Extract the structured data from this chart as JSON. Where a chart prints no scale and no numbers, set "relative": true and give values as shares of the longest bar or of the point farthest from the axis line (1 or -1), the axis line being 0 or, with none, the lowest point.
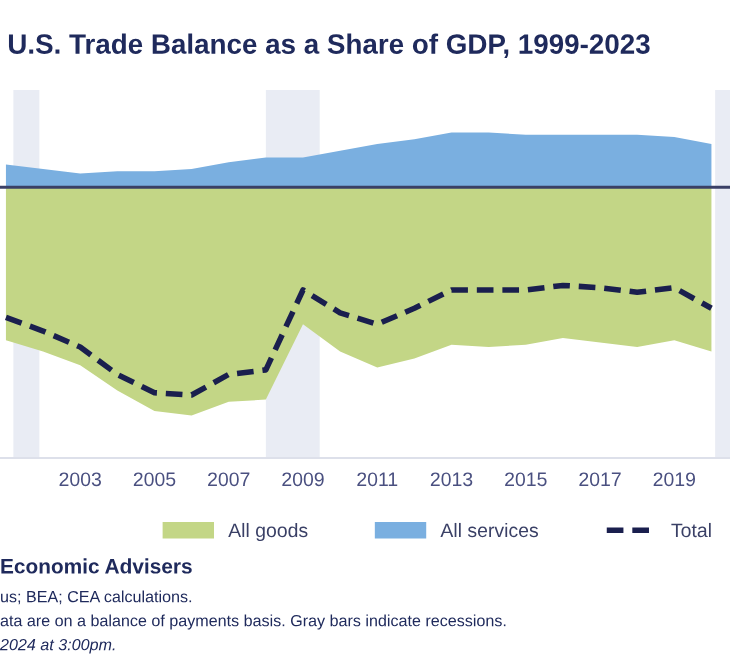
{
  "chart_data": {
    "type": "area",
    "title": "U.S. Trade Balance as a Share of GDP, 1999-2023",
    "relative": true,
    "x": [
      2001,
      2002,
      2003,
      2004,
      2005,
      2006,
      2007,
      2008,
      2009,
      2010,
      2011,
      2012,
      2013,
      2014,
      2015,
      2016,
      2017,
      2018,
      2019,
      2020
    ],
    "xlim": [
      2000.84,
      2020.5
    ],
    "xticks": [
      2003,
      2005,
      2007,
      2009,
      2011,
      2013,
      2015,
      2017,
      2019
    ],
    "series": [
      {
        "name": "All goods",
        "color": "#c3d686",
        "values": [
          -0.67,
          -0.72,
          -0.78,
          -0.89,
          -0.98,
          -1,
          -0.94,
          -0.93,
          -0.6,
          -0.72,
          -0.79,
          -0.75,
          -0.69,
          -0.7,
          -0.69,
          -0.66,
          -0.68,
          -0.7,
          -0.67,
          -0.72
        ]
      },
      {
        "name": "All services",
        "color": "#7aafe0",
        "values": [
          0.1,
          0.08,
          0.06,
          0.07,
          0.07,
          0.08,
          0.11,
          0.13,
          0.13,
          0.16,
          0.19,
          0.21,
          0.24,
          0.24,
          0.23,
          0.23,
          0.23,
          0.23,
          0.22,
          0.19
        ]
      },
      {
        "name": "Total",
        "type": "line",
        "color": "#1a1f4e",
        "line_style": "dashed",
        "values": [
          -0.57,
          -0.63,
          -0.7,
          -0.82,
          -0.9,
          -0.91,
          -0.82,
          -0.8,
          -0.45,
          -0.55,
          -0.6,
          -0.53,
          -0.45,
          -0.45,
          -0.45,
          -0.43,
          -0.44,
          -0.46,
          -0.44,
          -0.53
        ]
      }
    ],
    "bands": [
      {
        "axis": "x",
        "from": 2001.2,
        "to": 2001.9,
        "color": "#e9ecf4"
      },
      {
        "axis": "x",
        "from": 2008.0,
        "to": 2009.45,
        "color": "#e9ecf4"
      },
      {
        "axis": "x",
        "from": 2020.1,
        "to": 2020.5,
        "color": "#e9ecf4"
      }
    ],
    "ref_lines": [
      {
        "axis": "y",
        "value": 0,
        "color": "#3a4066"
      }
    ],
    "legend": "bottom",
    "annotations": [
      "Economic Advisers",
      "us; BEA; CEA calculations.",
      "ata are on a balance of payments basis. Gray bars indicate recessions.",
      "2024 at 3:00pm."
    ]
  }
}
